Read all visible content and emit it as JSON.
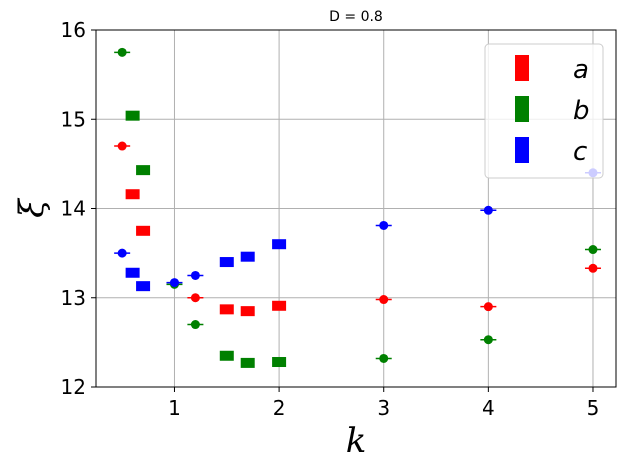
{
  "chart_data": {
    "type": "scatter",
    "title": "D = 0.8",
    "xlabel": "k",
    "ylabel": "ξ",
    "xlim": [
      0.25,
      5.22
    ],
    "ylim": [
      12,
      16
    ],
    "xticks": [
      1,
      2,
      3,
      4,
      5
    ],
    "yticks": [
      12,
      13,
      14,
      15,
      16
    ],
    "grid": true,
    "legend_position": "top-right",
    "series": [
      {
        "name": "a",
        "color": "#ff0000",
        "points": [
          {
            "x": 0.5,
            "y": 14.7,
            "marker": "circle"
          },
          {
            "x": 0.6,
            "y": 14.16,
            "marker": "square"
          },
          {
            "x": 0.7,
            "y": 13.75,
            "marker": "square"
          },
          {
            "x": 1.2,
            "y": 13.0,
            "marker": "circle"
          },
          {
            "x": 1.5,
            "y": 12.87,
            "marker": "square"
          },
          {
            "x": 1.7,
            "y": 12.85,
            "marker": "square"
          },
          {
            "x": 2.0,
            "y": 12.91,
            "marker": "square"
          },
          {
            "x": 3.0,
            "y": 12.98,
            "marker": "circle"
          },
          {
            "x": 4.0,
            "y": 12.9,
            "marker": "circle"
          },
          {
            "x": 5.0,
            "y": 13.33,
            "marker": "circle"
          }
        ]
      },
      {
        "name": "b",
        "color": "#008000",
        "points": [
          {
            "x": 0.5,
            "y": 15.75,
            "marker": "circle"
          },
          {
            "x": 0.6,
            "y": 15.04,
            "marker": "square"
          },
          {
            "x": 0.7,
            "y": 14.43,
            "marker": "square"
          },
          {
            "x": 1.0,
            "y": 13.15,
            "marker": "circle"
          },
          {
            "x": 1.2,
            "y": 12.7,
            "marker": "circle"
          },
          {
            "x": 1.5,
            "y": 12.35,
            "marker": "square"
          },
          {
            "x": 1.7,
            "y": 12.27,
            "marker": "square"
          },
          {
            "x": 2.0,
            "y": 12.28,
            "marker": "square"
          },
          {
            "x": 3.0,
            "y": 12.32,
            "marker": "circle"
          },
          {
            "x": 4.0,
            "y": 12.53,
            "marker": "circle"
          },
          {
            "x": 5.0,
            "y": 13.54,
            "marker": "circle"
          }
        ]
      },
      {
        "name": "c",
        "color": "#0000ff",
        "points": [
          {
            "x": 0.5,
            "y": 13.5,
            "marker": "circle"
          },
          {
            "x": 0.6,
            "y": 13.28,
            "marker": "square"
          },
          {
            "x": 0.7,
            "y": 13.13,
            "marker": "square"
          },
          {
            "x": 1.0,
            "y": 13.17,
            "marker": "circle"
          },
          {
            "x": 1.2,
            "y": 13.25,
            "marker": "circle"
          },
          {
            "x": 1.5,
            "y": 13.4,
            "marker": "square"
          },
          {
            "x": 1.7,
            "y": 13.46,
            "marker": "square"
          },
          {
            "x": 2.0,
            "y": 13.6,
            "marker": "square"
          },
          {
            "x": 3.0,
            "y": 13.81,
            "marker": "circle"
          },
          {
            "x": 4.0,
            "y": 13.98,
            "marker": "circle"
          },
          {
            "x": 5.0,
            "y": 14.4,
            "marker": "circle"
          }
        ]
      }
    ]
  }
}
